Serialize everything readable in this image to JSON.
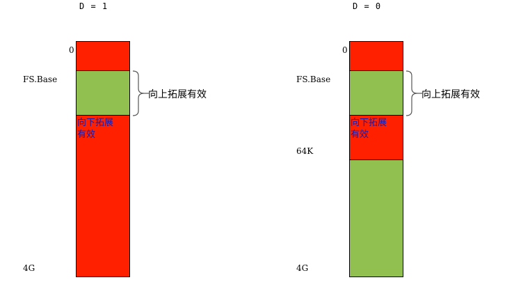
{
  "diagrams": [
    {
      "title": "D = 1",
      "address_labels": {
        "zero": "0",
        "fs_base": "FS.Base",
        "limit_64k": "",
        "top_4g": "4G"
      },
      "segments": [
        {
          "color": "red",
          "label": ""
        },
        {
          "color": "green",
          "label": ""
        },
        {
          "color": "red",
          "label": "向下拓展有效"
        }
      ],
      "brace_label": "向上拓展有效"
    },
    {
      "title": "D = 0",
      "address_labels": {
        "zero": "0",
        "fs_base": "FS.Base",
        "limit_64k": "64K",
        "top_4g": "4G"
      },
      "segments": [
        {
          "color": "red",
          "label": ""
        },
        {
          "color": "green",
          "label": ""
        },
        {
          "color": "red",
          "label": "向下拓展有效"
        },
        {
          "color": "green",
          "label": ""
        }
      ],
      "brace_label": "向上拓展有效"
    }
  ],
  "colors": {
    "red": "#ff2000",
    "green": "#92c050",
    "label_text": "#1a1aa8"
  }
}
